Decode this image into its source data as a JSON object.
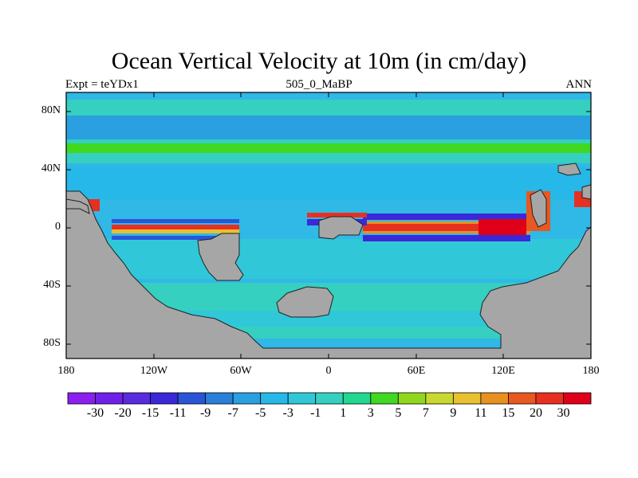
{
  "title": "Ocean Vertical Velocity at 10m (in cm/day)",
  "subtitle_left": "Expt = teYDx1",
  "subtitle_center": "505_0_MaBP",
  "subtitle_right": "ANN",
  "y_axis_ticks": [
    "80N",
    "40N",
    "0",
    "40S",
    "80S"
  ],
  "x_axis_ticks": [
    "180",
    "120W",
    "60W",
    "0",
    "60E",
    "120E",
    "180"
  ],
  "colorbar": {
    "labels": [
      "-30",
      "-20",
      "-15",
      "-11",
      "-9",
      "-7",
      "-5",
      "-3",
      "-1",
      "1",
      "3",
      "5",
      "7",
      "9",
      "11",
      "15",
      "20",
      "30"
    ],
    "colors": [
      "#8b1ff0",
      "#7020e8",
      "#5a2ae0",
      "#3b28d8",
      "#2a55d8",
      "#2a80d8",
      "#2aa0e0",
      "#25b8e8",
      "#30c8d8",
      "#35d0c0",
      "#20d890",
      "#40d820",
      "#90d820",
      "#c8d830",
      "#e8c030",
      "#e89020",
      "#e85820",
      "#e83020",
      "#e00018"
    ]
  },
  "colors": {
    "land": "#a6a6a6",
    "ocean_background": "#30b8e6",
    "coast": "#202020"
  }
}
